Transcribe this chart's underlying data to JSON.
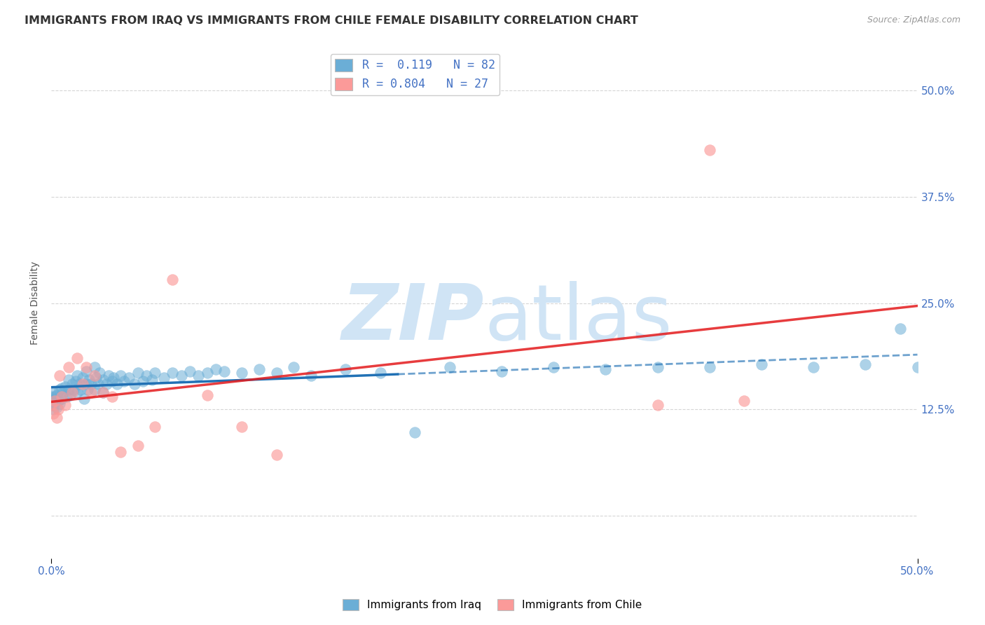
{
  "title": "IMMIGRANTS FROM IRAQ VS IMMIGRANTS FROM CHILE FEMALE DISABILITY CORRELATION CHART",
  "source": "Source: ZipAtlas.com",
  "ylabel": "Female Disability",
  "xlim": [
    0.0,
    0.5
  ],
  "ylim": [
    -0.05,
    0.55
  ],
  "ytick_vals": [
    0.0,
    0.125,
    0.25,
    0.375,
    0.5
  ],
  "ytick_labels": [
    "",
    "12.5%",
    "25.0%",
    "37.5%",
    "50.0%"
  ],
  "iraq_R": 0.119,
  "iraq_N": 82,
  "chile_R": 0.804,
  "chile_N": 27,
  "iraq_color": "#6baed6",
  "chile_color": "#fb9a99",
  "iraq_line_color": "#2171b5",
  "chile_line_color": "#e31a1c",
  "background_color": "#ffffff",
  "grid_color": "#cccccc",
  "watermark_color": "#d0e4f5",
  "iraq_x": [
    0.0,
    0.0,
    0.0,
    0.001,
    0.001,
    0.002,
    0.002,
    0.003,
    0.003,
    0.004,
    0.005,
    0.005,
    0.006,
    0.006,
    0.007,
    0.008,
    0.009,
    0.01,
    0.01,
    0.011,
    0.012,
    0.013,
    0.014,
    0.015,
    0.015,
    0.016,
    0.017,
    0.018,
    0.019,
    0.02,
    0.02,
    0.021,
    0.022,
    0.023,
    0.025,
    0.025,
    0.026,
    0.027,
    0.028,
    0.03,
    0.03,
    0.032,
    0.033,
    0.035,
    0.036,
    0.038,
    0.04,
    0.042,
    0.045,
    0.048,
    0.05,
    0.053,
    0.055,
    0.058,
    0.06,
    0.065,
    0.07,
    0.075,
    0.08,
    0.085,
    0.09,
    0.095,
    0.1,
    0.11,
    0.12,
    0.13,
    0.14,
    0.15,
    0.17,
    0.19,
    0.21,
    0.23,
    0.26,
    0.29,
    0.32,
    0.35,
    0.38,
    0.41,
    0.44,
    0.47,
    0.49,
    0.5
  ],
  "iraq_y": [
    0.14,
    0.135,
    0.13,
    0.145,
    0.125,
    0.14,
    0.138,
    0.142,
    0.128,
    0.135,
    0.148,
    0.132,
    0.15,
    0.138,
    0.145,
    0.152,
    0.14,
    0.148,
    0.16,
    0.142,
    0.155,
    0.148,
    0.158,
    0.165,
    0.145,
    0.155,
    0.148,
    0.162,
    0.138,
    0.155,
    0.17,
    0.148,
    0.16,
    0.155,
    0.175,
    0.148,
    0.162,
    0.155,
    0.168,
    0.16,
    0.145,
    0.155,
    0.165,
    0.158,
    0.162,
    0.155,
    0.165,
    0.158,
    0.162,
    0.155,
    0.168,
    0.158,
    0.165,
    0.16,
    0.168,
    0.162,
    0.168,
    0.165,
    0.17,
    0.165,
    0.168,
    0.172,
    0.17,
    0.168,
    0.172,
    0.168,
    0.175,
    0.165,
    0.172,
    0.168,
    0.098,
    0.175,
    0.17,
    0.175,
    0.172,
    0.175,
    0.175,
    0.178,
    0.175,
    0.178,
    0.22,
    0.175
  ],
  "chile_x": [
    0.0,
    0.001,
    0.002,
    0.003,
    0.004,
    0.005,
    0.006,
    0.008,
    0.01,
    0.012,
    0.015,
    0.018,
    0.02,
    0.023,
    0.025,
    0.03,
    0.035,
    0.04,
    0.05,
    0.06,
    0.07,
    0.09,
    0.11,
    0.13,
    0.35,
    0.38,
    0.4
  ],
  "chile_y": [
    0.13,
    0.12,
    0.135,
    0.115,
    0.125,
    0.165,
    0.14,
    0.13,
    0.175,
    0.145,
    0.185,
    0.155,
    0.175,
    0.145,
    0.165,
    0.145,
    0.14,
    0.075,
    0.082,
    0.105,
    0.278,
    0.142,
    0.105,
    0.072,
    0.13,
    0.43,
    0.135
  ]
}
